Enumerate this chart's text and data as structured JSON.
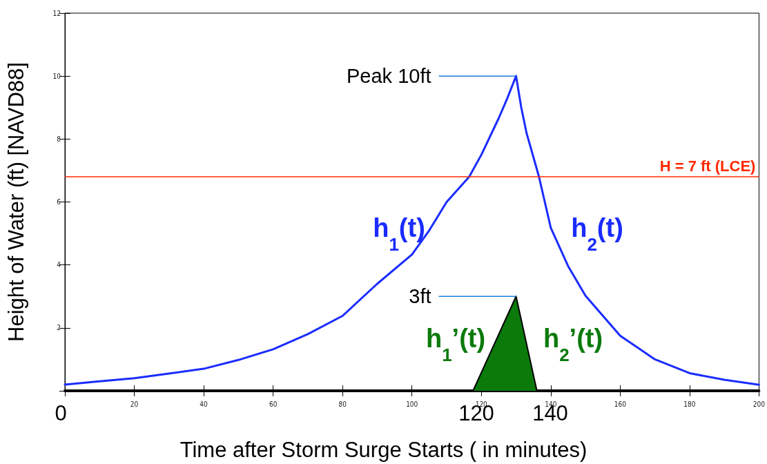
{
  "chart_data": {
    "type": "line",
    "xlabel": "Time after Storm Surge Starts ( in minutes)",
    "ylabel": "Height of Water (ft) [NAVD88]",
    "xlim": [
      0,
      200
    ],
    "xticks": [
      {
        "value": 0,
        "label": null
      },
      20,
      40,
      60,
      80,
      100,
      120,
      140,
      160,
      180,
      200
    ],
    "ylim": [
      0,
      12
    ],
    "yticks": [
      {
        "value": 0,
        "label": null
      },
      2,
      4,
      6,
      8,
      10,
      12
    ],
    "marker": "none",
    "series": [
      {
        "name": "h$_{1}$(t)",
        "color": "#1a2cff",
        "x": [
          0,
          10,
          20,
          30,
          40,
          50,
          60,
          70,
          80,
          90,
          100,
          105,
          110,
          116.5,
          120,
          125,
          127.5,
          130
        ],
        "values": [
          0.2,
          0.3,
          0.4,
          0.55,
          0.7,
          0.98,
          1.32,
          1.8,
          2.38,
          3.4,
          4.33,
          5.1,
          6.0,
          6.8,
          7.5,
          8.66,
          9.3,
          10
        ]
      },
      {
        "name": "h$_{2}$(t)",
        "color": "#1a2cff",
        "x": [
          130,
          131.5,
          133,
          136.6,
          140,
          145,
          150,
          160,
          170,
          180,
          190,
          200
        ],
        "values": [
          10,
          9.0,
          8.2,
          6.8,
          5.18,
          3.96,
          3.02,
          1.75,
          1.0,
          0.56,
          0.35,
          0.19
        ]
      },
      {
        "type": "area",
        "color": "#0b7a0b",
        "x": [
          117.6,
          130,
          136
        ],
        "values": [
          0,
          3,
          0
        ]
      }
    ],
    "ref_lines": [
      {
        "axis": "y",
        "value": 6.8,
        "label": "H = 7 ft (LCE)",
        "color": "#ff2a00"
      }
    ],
    "annotations": [
      {
        "text": "Peak 10ft",
        "x": 130,
        "y": 10
      },
      {
        "text": "3ft",
        "x": 130,
        "y": 3
      },
      "0",
      "120",
      "140",
      "h$_{1}$’(t)",
      "h$_{2}$’(t)"
    ]
  }
}
